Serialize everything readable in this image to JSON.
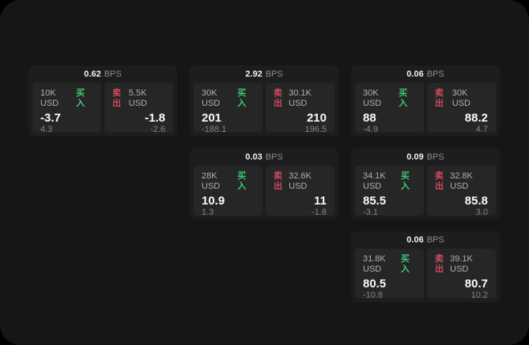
{
  "labels": {
    "bps": "BPS",
    "buy": "买入",
    "sell": "卖出"
  },
  "colors": {
    "window_bg": "#161616",
    "card_bg": "#1d1d1d",
    "panel_bg": "#262626",
    "buy_green": "#3fca73",
    "sell_red": "#cd4a5f"
  },
  "cards": [
    {
      "bps": "0.62",
      "buy": {
        "amount": "10K USD",
        "value": "-3.7",
        "sub": "4.3"
      },
      "sell": {
        "amount": "5.5K USD",
        "value": "-1.8",
        "sub": "-2.6"
      }
    },
    {
      "bps": "2.92",
      "buy": {
        "amount": "30K USD",
        "value": "201",
        "sub": "-188.1"
      },
      "sell": {
        "amount": "30.1K USD",
        "value": "210",
        "sub": "196.5"
      }
    },
    {
      "bps": "0.06",
      "buy": {
        "amount": "30K USD",
        "value": "88",
        "sub": "-4.9"
      },
      "sell": {
        "amount": "30K USD",
        "value": "88.2",
        "sub": "4.7"
      }
    },
    {
      "bps": "0.03",
      "buy": {
        "amount": "28K USD",
        "value": "10.9",
        "sub": "1.3"
      },
      "sell": {
        "amount": "32.6K USD",
        "value": "11",
        "sub": "-1.8"
      }
    },
    {
      "bps": "0.09",
      "buy": {
        "amount": "34.1K USD",
        "value": "85.5",
        "sub": "-3.1"
      },
      "sell": {
        "amount": "32.8K USD",
        "value": "85.8",
        "sub": "3.0"
      }
    },
    {
      "bps": "0.06",
      "buy": {
        "amount": "31.8K USD",
        "value": "80.5",
        "sub": "-10.8"
      },
      "sell": {
        "amount": "39.1K USD",
        "value": "80.7",
        "sub": "10.2"
      }
    }
  ]
}
